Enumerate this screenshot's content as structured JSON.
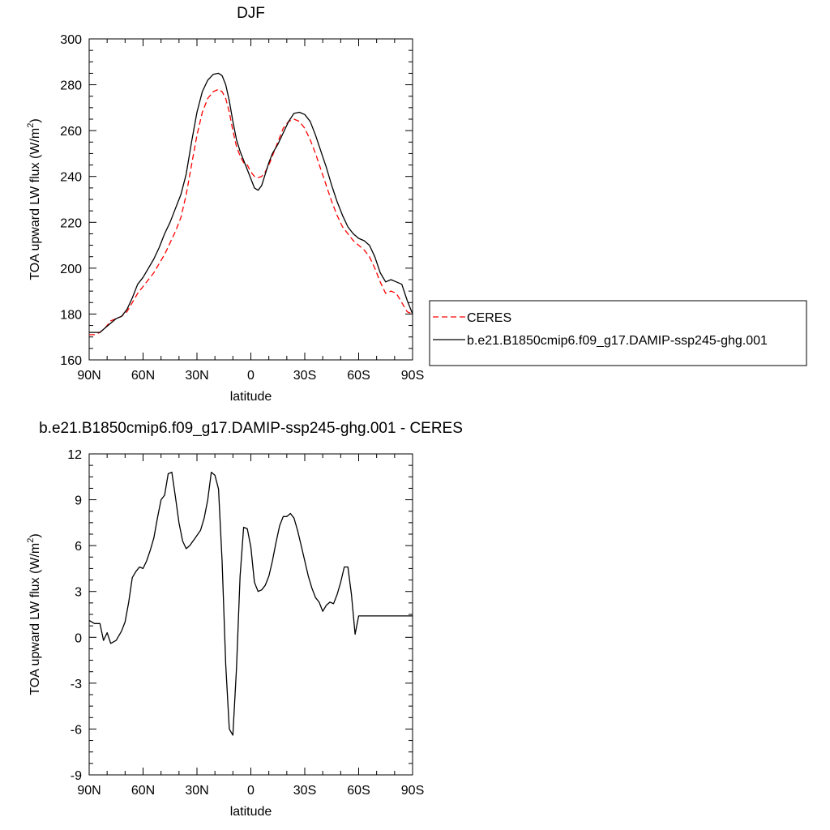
{
  "chart_data": [
    {
      "type": "line",
      "title": "DJF",
      "xlabel": "latitude",
      "ylabel_main": "TOA upward LW flux (W/m",
      "ylabel_sup": "2",
      "ylabel_tail": ")",
      "xlim": [
        90,
        -90
      ],
      "ylim": [
        160,
        300
      ],
      "x_ticks": [
        {
          "value": 90,
          "label": "90N"
        },
        {
          "value": 60,
          "label": "60N"
        },
        {
          "value": 30,
          "label": "30N"
        },
        {
          "value": 0,
          "label": "0"
        },
        {
          "value": -30,
          "label": "30S"
        },
        {
          "value": -60,
          "label": "60S"
        },
        {
          "value": -90,
          "label": "90S"
        }
      ],
      "y_ticks": [
        160,
        180,
        200,
        220,
        240,
        260,
        280,
        300
      ],
      "grid": false,
      "legend_position": "right",
      "series": [
        {
          "name": "CERES",
          "color": "#ff0000",
          "style": "dashed",
          "x": [
            90,
            87,
            84,
            81,
            78,
            75,
            72,
            69,
            66,
            63,
            60,
            57,
            54,
            51,
            48,
            45,
            42,
            39,
            36,
            33,
            30,
            27,
            24,
            21,
            18,
            16,
            14,
            12,
            10,
            8,
            6,
            4,
            2,
            0,
            -2,
            -4,
            -6,
            -8,
            -10,
            -12,
            -15,
            -18,
            -21,
            -24,
            -27,
            -30,
            -33,
            -36,
            -39,
            -42,
            -45,
            -48,
            -51,
            -54,
            -57,
            -60,
            -63,
            -66,
            -69,
            -72,
            -75,
            -78,
            -81,
            -84,
            -87,
            -90
          ],
          "y": [
            171,
            171,
            172,
            174,
            177,
            178,
            179,
            181,
            185,
            189,
            192,
            195,
            198,
            202,
            206,
            211,
            216,
            222,
            232,
            245,
            258,
            268,
            274,
            277,
            278,
            277,
            274,
            268,
            260,
            253,
            249,
            246,
            245,
            242,
            240,
            239.5,
            240,
            242,
            245,
            249,
            255,
            261,
            264,
            265,
            264,
            261,
            256,
            250,
            243,
            236,
            229,
            223,
            218,
            215,
            212,
            210,
            208,
            205,
            200,
            194,
            189,
            190,
            189,
            185,
            181,
            180
          ]
        },
        {
          "name": "b.e21.B1850cmip6.f09_g17.DAMIP-ssp245-ghg.001",
          "color": "#000000",
          "style": "solid",
          "x": [
            90,
            87,
            84,
            81,
            78,
            75,
            72,
            69,
            66,
            63,
            60,
            57,
            54,
            51,
            48,
            45,
            42,
            39,
            36,
            33,
            30,
            27,
            24,
            21,
            18,
            16,
            14,
            12,
            10,
            8,
            6,
            4,
            2,
            0,
            -2,
            -4,
            -6,
            -8,
            -10,
            -12,
            -15,
            -18,
            -21,
            -24,
            -27,
            -30,
            -33,
            -36,
            -39,
            -42,
            -45,
            -48,
            -51,
            -54,
            -57,
            -60,
            -63,
            -66,
            -69,
            -72,
            -75,
            -78,
            -81,
            -84,
            -87,
            -90
          ],
          "y": [
            172,
            172,
            172,
            174,
            176,
            178,
            179,
            182,
            187,
            193,
            196,
            200,
            204,
            209,
            215,
            220,
            226,
            232,
            241,
            255,
            268,
            277,
            282,
            284.5,
            285,
            284,
            280,
            273,
            264,
            256,
            251,
            247,
            243,
            239,
            235,
            234,
            236,
            241,
            246,
            250,
            254,
            259,
            264,
            267.5,
            268,
            267,
            264,
            258,
            251,
            244,
            236,
            229,
            223,
            218,
            215,
            213,
            212,
            210,
            205,
            198,
            194,
            195,
            194,
            193,
            186,
            180
          ]
        }
      ]
    },
    {
      "type": "line",
      "title": "b.e21.B1850cmip6.f09_g17.DAMIP-ssp245-ghg.001 - CERES",
      "xlabel": "latitude",
      "ylabel_main": "TOA upward LW flux (W/m",
      "ylabel_sup": "2",
      "ylabel_tail": ")",
      "xlim": [
        90,
        -90
      ],
      "ylim": [
        -9,
        12
      ],
      "x_ticks": [
        {
          "value": 90,
          "label": "90N"
        },
        {
          "value": 60,
          "label": "60N"
        },
        {
          "value": 30,
          "label": "30N"
        },
        {
          "value": 0,
          "label": "0"
        },
        {
          "value": -30,
          "label": "30S"
        },
        {
          "value": -60,
          "label": "60S"
        },
        {
          "value": -90,
          "label": "90S"
        }
      ],
      "y_ticks": [
        -9,
        -6,
        -3,
        0,
        3,
        6,
        9,
        12
      ],
      "grid": false,
      "series": [
        {
          "color": "#000000",
          "style": "solid",
          "x": [
            90,
            87,
            84,
            82,
            80,
            78,
            75,
            72,
            70,
            68,
            66,
            64,
            62,
            60,
            58,
            56,
            54,
            52,
            50,
            48,
            46,
            44,
            42,
            40,
            38,
            36,
            34,
            31,
            28,
            26,
            24,
            22,
            20,
            18,
            16,
            14,
            12,
            10,
            8,
            6,
            4,
            2,
            0,
            -2,
            -4,
            -6,
            -8,
            -10,
            -12,
            -14,
            -16,
            -18,
            -20,
            -22,
            -24,
            -26,
            -28,
            -30,
            -32,
            -34,
            -36,
            -38,
            -40,
            -42,
            -44,
            -46,
            -48,
            -50,
            -52,
            -54,
            -56,
            -58,
            -60,
            -62,
            -64,
            -66,
            -68,
            -70,
            -72,
            -74,
            -76,
            -78,
            -80,
            -82,
            -84,
            -86,
            -88,
            -90
          ],
          "y": [
            1.1,
            0.9,
            0.9,
            -0.2,
            0.3,
            -0.4,
            -0.2,
            0.4,
            1.0,
            2.3,
            3.9,
            4.3,
            4.6,
            4.5,
            5.0,
            5.7,
            6.5,
            7.8,
            9.0,
            9.3,
            10.7,
            10.8,
            9.2,
            7.5,
            6.3,
            5.8,
            6.0,
            6.5,
            7.0,
            7.8,
            9.0,
            10.8,
            10.6,
            9.7,
            5.0,
            -1.8,
            -6.0,
            -6.4,
            -2.0,
            4.0,
            7.2,
            7.1,
            5.9,
            3.6,
            3.0,
            3.1,
            3.4,
            4.0,
            5.0,
            6.2,
            7.3,
            7.9,
            7.9,
            8.1,
            7.8,
            7.0,
            6.0,
            5.0,
            4.0,
            3.2,
            2.6,
            2.3,
            1.7,
            2.1,
            2.3,
            2.2,
            2.8,
            3.6,
            4.6,
            4.6,
            2.8,
            0.2,
            1.4,
            1.4,
            1.4,
            1.4,
            1.4,
            1.4,
            1.4,
            1.4,
            1.4,
            1.4,
            1.4,
            1.4,
            1.4,
            1.4,
            1.4,
            1.4
          ]
        }
      ]
    }
  ]
}
